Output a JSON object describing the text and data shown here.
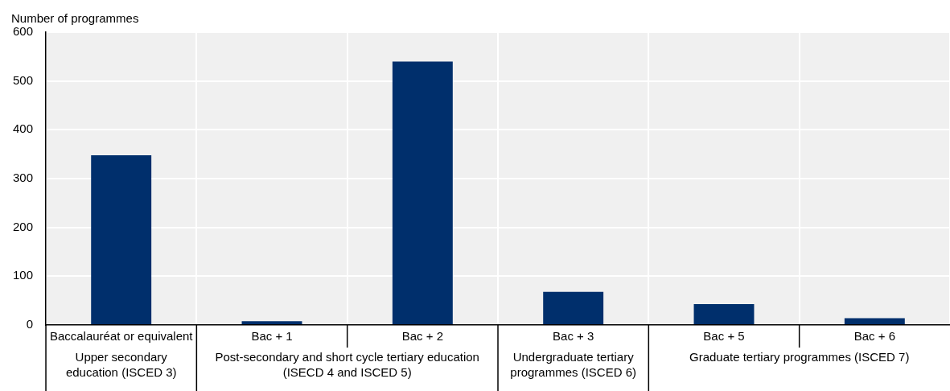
{
  "chart_data": {
    "type": "bar",
    "ylabel": "Number of programmes",
    "categories": [
      "Baccalauréat or equivalent",
      "Bac + 1",
      "Bac + 2",
      "Bac + 3",
      "Bac + 5",
      "Bac + 6"
    ],
    "values": [
      348,
      8,
      540,
      68,
      43,
      14
    ],
    "color": "#002f6c",
    "ylim": [
      0,
      600
    ],
    "yticks": [
      0,
      100,
      200,
      300,
      400,
      500,
      600
    ],
    "grid": true,
    "annotations": [
      "Upper secondary education (ISCED 3)",
      "Post-secondary and short cycle tertiary education (ISECD 4 and ISCED 5)",
      "Undergraduate tertiary programmes (ISCED 6)",
      "Graduate tertiary programmes (ISCED 7)"
    ]
  }
}
